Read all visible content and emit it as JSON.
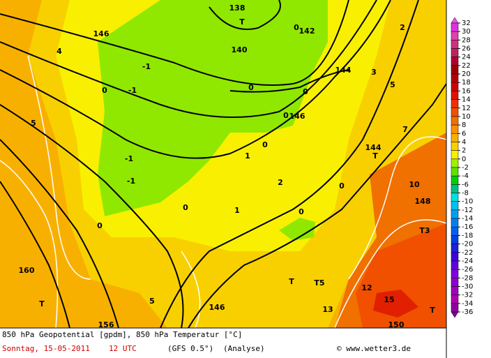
{
  "map": {
    "labels": [
      "138",
      "T",
      "140",
      "142",
      "0",
      "144",
      "146",
      "-1",
      "-1",
      "0",
      "-1",
      "-1",
      "1",
      "0",
      "0",
      "146",
      "0",
      "0",
      "5",
      "144",
      "T",
      "10",
      "5",
      "0",
      "0",
      "0",
      "0",
      "1",
      "2",
      "160",
      "T",
      "5",
      "146",
      "T",
      "T5",
      "15",
      "T",
      "148",
      "T3",
      "13",
      "150",
      "156",
      "3",
      "4",
      "2",
      "7",
      "12"
    ]
  },
  "colorbar": {
    "ticks": [
      32,
      30,
      28,
      26,
      24,
      22,
      20,
      18,
      16,
      14,
      12,
      10,
      8,
      6,
      4,
      2,
      0,
      -2,
      -4,
      -6,
      -8,
      -10,
      -12,
      -14,
      -16,
      -18,
      -20,
      -22,
      -24,
      -26,
      -28,
      -30,
      -32,
      -34,
      -36
    ],
    "colors": [
      "#e030e0",
      "#e040b0",
      "#d03080",
      "#c02060",
      "#b00030",
      "#a00000",
      "#b80000",
      "#d00000",
      "#e01000",
      "#f03000",
      "#f05000",
      "#f07000",
      "#f89000",
      "#f8b000",
      "#f8d000",
      "#f8f000",
      "#a0f000",
      "#60e000",
      "#00d000",
      "#00c080",
      "#00e0e0",
      "#00c0f0",
      "#00a0f0",
      "#0080f0",
      "#0060f0",
      "#0040e0",
      "#2020e0",
      "#4000e0",
      "#6000e0",
      "#8000e0",
      "#9000d0",
      "#a000c0",
      "#b000b0",
      "#9000a0"
    ],
    "top_color": "#f050f0",
    "bottom_color": "#8000a0"
  },
  "footer": {
    "title": "850 hPa Geopotential [gpdm], 850 hPa Temperatur [°C]",
    "date": "Sonntag, 15-05-2011",
    "time": "12 UTC",
    "model": "(GFS 0.5°)",
    "run": "(Analyse)",
    "credit": "© www.wetter3.de"
  }
}
